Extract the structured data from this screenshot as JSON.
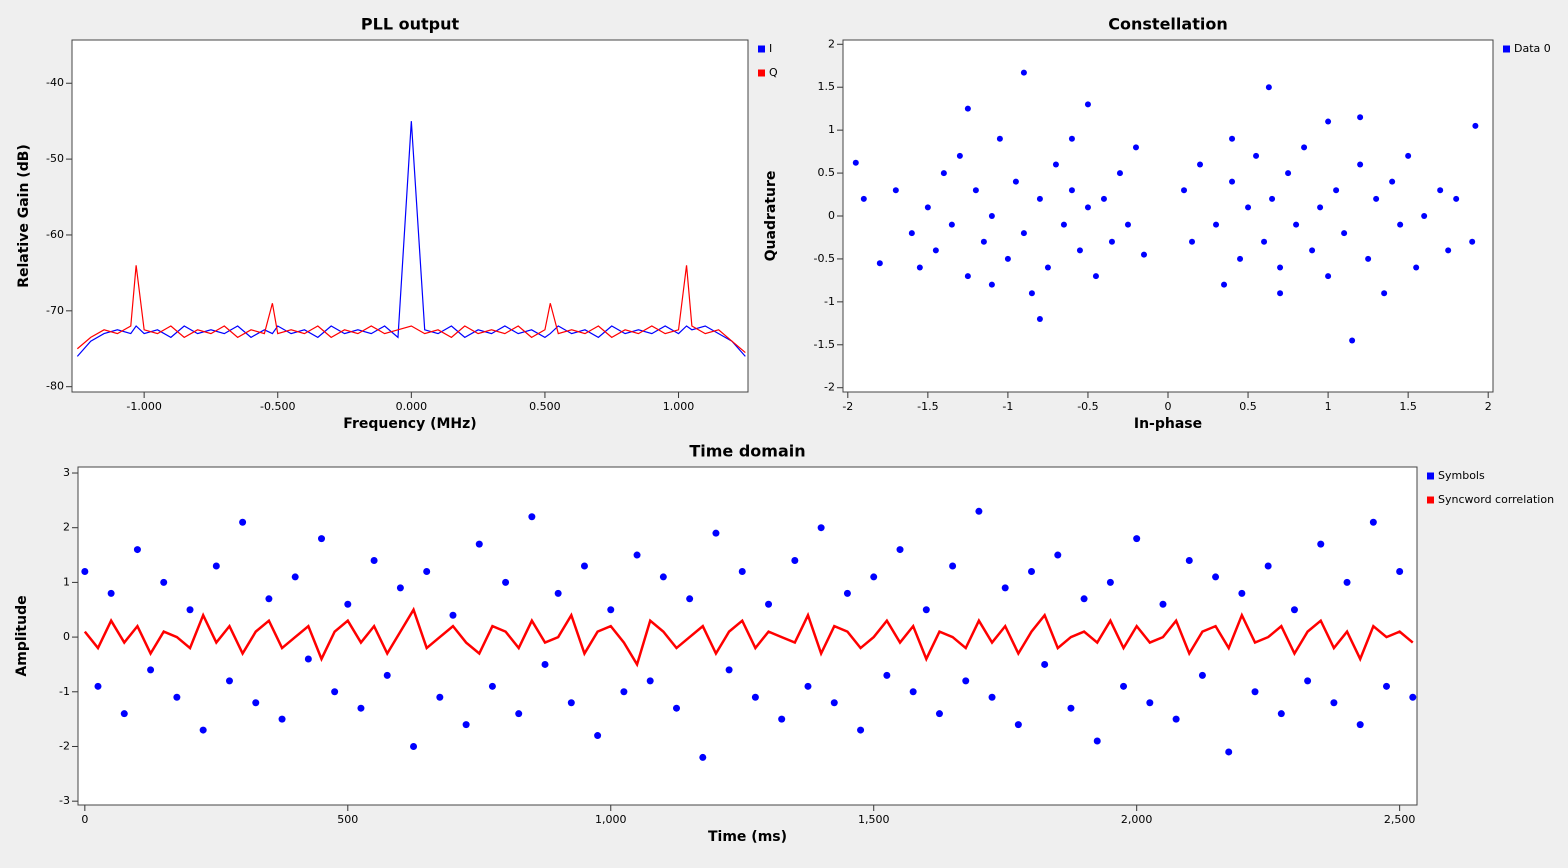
{
  "chart_data": [
    {
      "type": "line",
      "title": "PLL output",
      "x_label": "Frequency (MHz)",
      "y_label": "Relative Gain (dB)",
      "xlim": [
        -1.27,
        1.26
      ],
      "ylim": [
        -80.7,
        -34.3
      ],
      "xticks": [
        {
          "value": -1,
          "label": "-1.000"
        },
        {
          "value": -0.5,
          "label": "-0.500"
        },
        {
          "value": 0,
          "label": "0.000"
        },
        {
          "value": 0.5,
          "label": "0.500"
        },
        {
          "value": 1,
          "label": "1.000"
        }
      ],
      "yticks": [
        -80,
        -70,
        -60,
        -50,
        -40
      ],
      "x": [
        -1.25,
        -1.2,
        -1.15,
        -1.1,
        -1.05,
        -1.03,
        -1.0,
        -0.95,
        -0.9,
        -0.85,
        -0.8,
        -0.75,
        -0.7,
        -0.65,
        -0.6,
        -0.55,
        -0.52,
        -0.5,
        -0.45,
        -0.4,
        -0.35,
        -0.3,
        -0.25,
        -0.2,
        -0.15,
        -0.1,
        -0.05,
        0,
        0.05,
        0.1,
        0.15,
        0.2,
        0.25,
        0.3,
        0.35,
        0.4,
        0.45,
        0.5,
        0.52,
        0.55,
        0.6,
        0.65,
        0.7,
        0.75,
        0.8,
        0.85,
        0.9,
        0.95,
        1.0,
        1.03,
        1.05,
        1.1,
        1.15,
        1.2,
        1.25
      ],
      "series": [
        {
          "name": "I",
          "color": "#0000ff",
          "values": [
            -76,
            -74,
            -73,
            -72.5,
            -73,
            -72,
            -73,
            -72.5,
            -73.5,
            -72,
            -73,
            -72.5,
            -73,
            -72,
            -73.5,
            -72.5,
            -73,
            -72,
            -73,
            -72.5,
            -73.5,
            -72,
            -73,
            -72.5,
            -73,
            -72,
            -73.5,
            -45,
            -72.5,
            -73,
            -72,
            -73.5,
            -72.5,
            -73,
            -72,
            -73,
            -72.5,
            -73.5,
            -73,
            -72,
            -73,
            -72.5,
            -73.5,
            -72,
            -73,
            -72.5,
            -73,
            -72,
            -73,
            -72,
            -72.5,
            -72,
            -73,
            -74,
            -76
          ]
        },
        {
          "name": "Q",
          "color": "#ff0000",
          "values": [
            -75,
            -73.5,
            -72.5,
            -73,
            -72,
            -64,
            -72.5,
            -73,
            -72,
            -73.5,
            -72.5,
            -73,
            -72,
            -73.5,
            -72.5,
            -73,
            -69,
            -73,
            -72.5,
            -73,
            -72,
            -73.5,
            -72.5,
            -73,
            -72,
            -73,
            -72.5,
            -72,
            -73,
            -72.5,
            -73.5,
            -72,
            -73,
            -72.5,
            -73,
            -72,
            -73.5,
            -72.5,
            -69,
            -73,
            -72.5,
            -73,
            -72,
            -73.5,
            -72.5,
            -73,
            -72,
            -73,
            -72.5,
            -64,
            -72,
            -73,
            -72.5,
            -74,
            -75.5
          ]
        }
      ]
    },
    {
      "type": "scatter",
      "title": "Constellation",
      "x_label": "In-phase",
      "y_label": "Quadrature",
      "xlim": [
        -2.03,
        2.03
      ],
      "ylim": [
        -2.05,
        2.05
      ],
      "xticks": [
        -2,
        -1.5,
        -1,
        -0.5,
        0,
        0.5,
        1,
        1.5,
        2
      ],
      "yticks": [
        -2,
        -1.5,
        -1,
        -0.5,
        0,
        0.5,
        1,
        1.5,
        2
      ],
      "x": [
        -1.95,
        -1.9,
        -1.8,
        -1.7,
        -1.6,
        -1.55,
        -1.5,
        -1.45,
        -1.4,
        -1.35,
        -1.3,
        -1.25,
        -1.2,
        -1.15,
        -1.1,
        -1.05,
        -1.0,
        -0.95,
        -0.9,
        -0.9,
        -0.85,
        -0.8,
        -0.75,
        -0.7,
        -0.65,
        -0.6,
        -0.55,
        -0.5,
        -0.5,
        -0.45,
        -0.4,
        -0.35,
        -0.3,
        -0.25,
        -0.2,
        -0.15,
        -1.1,
        -0.8,
        -1.25,
        -0.6,
        0.1,
        0.15,
        0.2,
        0.3,
        0.35,
        0.4,
        0.45,
        0.5,
        0.55,
        0.6,
        0.63,
        0.65,
        0.7,
        0.75,
        0.8,
        0.85,
        0.9,
        0.95,
        1.0,
        1.0,
        1.05,
        1.1,
        1.15,
        1.2,
        1.25,
        1.3,
        1.35,
        1.4,
        1.45,
        1.5,
        1.55,
        1.6,
        1.7,
        1.75,
        1.8,
        1.92,
        1.9,
        0.7,
        1.2,
        0.4
      ],
      "series": [
        {
          "name": "Data 0",
          "color": "#0000ff",
          "values": [
            0.62,
            0.2,
            -0.55,
            0.3,
            -0.2,
            -0.6,
            0.1,
            -0.4,
            0.5,
            -0.1,
            0.7,
            -0.7,
            0.3,
            -0.3,
            0.0,
            0.9,
            -0.5,
            0.4,
            1.67,
            -0.2,
            -0.9,
            0.2,
            -0.6,
            0.6,
            -0.1,
            0.3,
            -0.4,
            1.3,
            0.1,
            -0.7,
            0.2,
            -0.3,
            0.5,
            -0.1,
            0.8,
            -0.45,
            -0.8,
            -1.2,
            1.25,
            0.9,
            0.3,
            -0.3,
            0.6,
            -0.1,
            -0.8,
            0.4,
            -0.5,
            0.1,
            0.7,
            -0.3,
            1.5,
            0.2,
            -0.6,
            0.5,
            -0.1,
            0.8,
            -0.4,
            0.1,
            1.1,
            -0.7,
            0.3,
            -0.2,
            -1.45,
            0.6,
            -0.5,
            0.2,
            -0.9,
            0.4,
            -0.1,
            0.7,
            -0.6,
            0.0,
            0.3,
            -0.4,
            0.2,
            1.05,
            -0.3,
            -0.9,
            1.15,
            0.9
          ]
        }
      ]
    },
    {
      "type": "line",
      "title": "Time domain",
      "x_label": "Time (ms)",
      "y_label": "Amplitude",
      "xlim": [
        -13,
        2533
      ],
      "ylim": [
        -3.07,
        3.11
      ],
      "xticks": [
        0,
        500,
        {
          "value": 1000,
          "label": "1,000"
        },
        {
          "value": 1500,
          "label": "1,500"
        },
        {
          "value": 2000,
          "label": "2,000"
        },
        {
          "value": 2500,
          "label": "2,500"
        }
      ],
      "yticks": [
        -3,
        -2,
        -1,
        0,
        1,
        2,
        3
      ],
      "x": [
        0,
        25,
        50,
        75,
        100,
        125,
        150,
        175,
        200,
        225,
        250,
        275,
        300,
        325,
        350,
        375,
        400,
        425,
        450,
        475,
        500,
        525,
        550,
        575,
        600,
        625,
        650,
        675,
        700,
        725,
        750,
        775,
        800,
        825,
        850,
        875,
        900,
        925,
        950,
        975,
        1000,
        1025,
        1050,
        1075,
        1100,
        1125,
        1150,
        1175,
        1200,
        1225,
        1250,
        1275,
        1300,
        1325,
        1350,
        1375,
        1400,
        1425,
        1450,
        1475,
        1500,
        1525,
        1550,
        1575,
        1600,
        1625,
        1650,
        1675,
        1700,
        1725,
        1750,
        1775,
        1800,
        1825,
        1850,
        1875,
        1900,
        1925,
        1950,
        1975,
        2000,
        2025,
        2050,
        2075,
        2100,
        2125,
        2150,
        2175,
        2200,
        2225,
        2250,
        2275,
        2300,
        2325,
        2350,
        2375,
        2400,
        2425,
        2450,
        2475,
        2500,
        2525
      ],
      "series": [
        {
          "name": "Symbols",
          "color": "#0000ff",
          "mode": "markers",
          "values": [
            1.2,
            -0.9,
            0.8,
            -1.4,
            1.6,
            -0.6,
            1.0,
            -1.1,
            0.5,
            -1.7,
            1.3,
            -0.8,
            2.1,
            -1.2,
            0.7,
            -1.5,
            1.1,
            -0.4,
            1.8,
            -1.0,
            0.6,
            -1.3,
            1.4,
            -0.7,
            0.9,
            -2.0,
            1.2,
            -1.1,
            0.4,
            -1.6,
            1.7,
            -0.9,
            1.0,
            -1.4,
            2.2,
            -0.5,
            0.8,
            -1.2,
            1.3,
            -1.8,
            0.5,
            -1.0,
            1.5,
            -0.8,
            1.1,
            -1.3,
            0.7,
            -2.2,
            1.9,
            -0.6,
            1.2,
            -1.1,
            0.6,
            -1.5,
            1.4,
            -0.9,
            2.0,
            -1.2,
            0.8,
            -1.7,
            1.1,
            -0.7,
            1.6,
            -1.0,
            0.5,
            -1.4,
            1.3,
            -0.8,
            2.3,
            -1.1,
            0.9,
            -1.6,
            1.2,
            -0.5,
            1.5,
            -1.3,
            0.7,
            -1.9,
            1.0,
            -0.9,
            1.8,
            -1.2,
            0.6,
            -1.5,
            1.4,
            -0.7,
            1.1,
            -2.1,
            0.8,
            -1.0,
            1.3,
            -1.4,
            0.5,
            -0.8,
            1.7,
            -1.2,
            1.0,
            -1.6,
            2.1,
            -0.9,
            1.2,
            -1.1
          ]
        },
        {
          "name": "Syncword correlation",
          "color": "#ff0000",
          "mode": "lines",
          "values": [
            0.1,
            -0.2,
            0.3,
            -0.1,
            0.2,
            -0.3,
            0.1,
            0.0,
            -0.2,
            0.4,
            -0.1,
            0.2,
            -0.3,
            0.1,
            0.3,
            -0.2,
            0.0,
            0.2,
            -0.4,
            0.1,
            0.3,
            -0.1,
            0.2,
            -0.3,
            0.1,
            0.5,
            -0.2,
            0.0,
            0.2,
            -0.1,
            -0.3,
            0.2,
            0.1,
            -0.2,
            0.3,
            -0.1,
            0.0,
            0.4,
            -0.3,
            0.1,
            0.2,
            -0.1,
            -0.5,
            0.3,
            0.1,
            -0.2,
            0.0,
            0.2,
            -0.3,
            0.1,
            0.3,
            -0.2,
            0.1,
            0.0,
            -0.1,
            0.4,
            -0.3,
            0.2,
            0.1,
            -0.2,
            0.0,
            0.3,
            -0.1,
            0.2,
            -0.4,
            0.1,
            0.0,
            -0.2,
            0.3,
            -0.1,
            0.2,
            -0.3,
            0.1,
            0.4,
            -0.2,
            0.0,
            0.1,
            -0.1,
            0.3,
            -0.2,
            0.2,
            -0.1,
            0.0,
            0.3,
            -0.3,
            0.1,
            0.2,
            -0.2,
            0.4,
            -0.1,
            0.0,
            0.2,
            -0.3,
            0.1,
            0.3,
            -0.2,
            0.1,
            -0.4,
            0.2,
            0.0,
            0.1,
            -0.1
          ]
        }
      ]
    }
  ]
}
